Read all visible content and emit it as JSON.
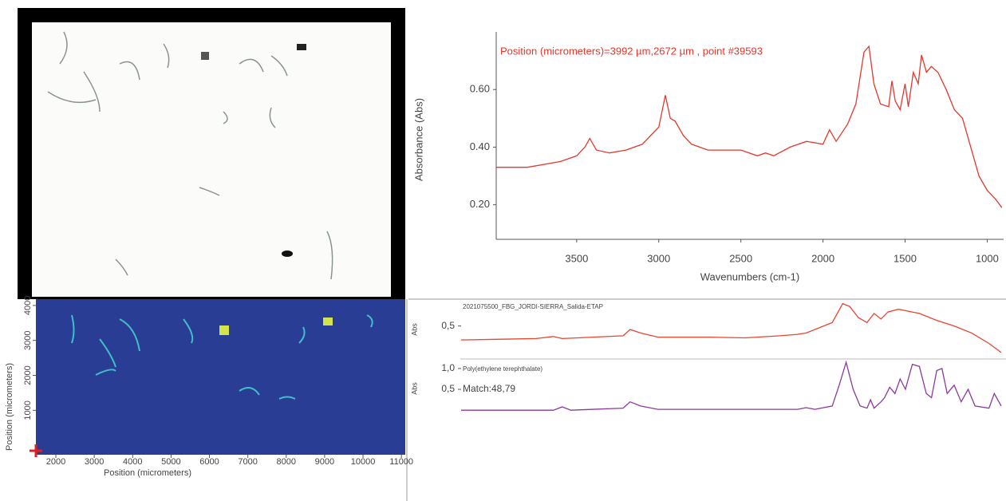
{
  "chart_data": [
    {
      "type": "image",
      "xlabel": "Position (micrometers)",
      "ylabel": "Position (micrometers)",
      "xlim": [
        1480,
        11100
      ],
      "ylim": [
        -270,
        4180
      ],
      "xticks": [
        2000,
        3000,
        4000,
        5000,
        6000,
        7000,
        8000,
        9000,
        10000,
        11000
      ],
      "yticks": [
        1000,
        2000,
        3000,
        4000
      ]
    },
    {
      "type": "line",
      "title": "Position (micrometers)=3992 µm,2672 µm , point #39593",
      "xlabel": "Wavenumbers (cm-1)",
      "ylabel": "Absorbance (Abs)",
      "xlim": [
        3990,
        900
      ],
      "ylim": [
        0.08,
        0.8
      ],
      "xticks": [
        3500,
        3000,
        2500,
        2000,
        1500,
        1000
      ],
      "yticks": [
        {
          "value": 0.6,
          "label": "0.60"
        },
        {
          "value": 0.4,
          "label": "0.40"
        },
        {
          "value": 0.2,
          "label": "0.20"
        }
      ],
      "x": [
        3990,
        3800,
        3600,
        3500,
        3450,
        3420,
        3380,
        3300,
        3200,
        3100,
        3050,
        3000,
        2960,
        2930,
        2900,
        2850,
        2800,
        2700,
        2500,
        2400,
        2350,
        2300,
        2200,
        2100,
        2000,
        1960,
        1920,
        1850,
        1800,
        1750,
        1720,
        1690,
        1650,
        1600,
        1580,
        1560,
        1530,
        1500,
        1480,
        1450,
        1420,
        1400,
        1370,
        1340,
        1300,
        1250,
        1200,
        1150,
        1100,
        1050,
        1000,
        950,
        910
      ],
      "series": [
        {
          "color": "#e0392e",
          "values": [
            0.33,
            0.33,
            0.35,
            0.37,
            0.4,
            0.43,
            0.39,
            0.38,
            0.39,
            0.41,
            0.44,
            0.47,
            0.58,
            0.5,
            0.49,
            0.44,
            0.41,
            0.39,
            0.39,
            0.37,
            0.38,
            0.37,
            0.4,
            0.42,
            0.41,
            0.46,
            0.42,
            0.48,
            0.55,
            0.73,
            0.75,
            0.62,
            0.55,
            0.54,
            0.63,
            0.56,
            0.53,
            0.62,
            0.54,
            0.66,
            0.62,
            0.72,
            0.66,
            0.68,
            0.66,
            0.6,
            0.53,
            0.5,
            0.4,
            0.3,
            0.25,
            0.22,
            0.19
          ]
        }
      ]
    },
    {
      "type": "line",
      "ylabel": "Abs",
      "xlim": [
        3930,
        830
      ],
      "ylim": [
        0.05,
        0.85
      ],
      "yticks": [
        {
          "value": 0.5,
          "label": "0,5"
        }
      ],
      "x": [
        3930,
        3500,
        3400,
        3350,
        3000,
        2960,
        2900,
        2800,
        2500,
        2300,
        2100,
        2000,
        1950,
        1800,
        1740,
        1700,
        1650,
        1600,
        1560,
        1520,
        1480,
        1420,
        1380,
        1300,
        1200,
        1100,
        1000,
        900,
        830
      ],
      "series": [
        {
          "name": "2021075500_FBG_JORDI-SIERRA_Salida-ETAP",
          "color": "#e8452f",
          "values": [
            0.3,
            0.32,
            0.35,
            0.32,
            0.36,
            0.45,
            0.4,
            0.34,
            0.34,
            0.33,
            0.36,
            0.38,
            0.4,
            0.55,
            0.82,
            0.78,
            0.62,
            0.55,
            0.68,
            0.6,
            0.7,
            0.74,
            0.72,
            0.68,
            0.58,
            0.5,
            0.4,
            0.25,
            0.12
          ]
        }
      ]
    },
    {
      "type": "line",
      "ylabel": "Abs",
      "annotation": "Match:48,79",
      "xlim": [
        3930,
        830
      ],
      "ylim": [
        -0.15,
        1.19
      ],
      "yticks": [
        {
          "value": 1.0,
          "label": "1,0"
        },
        {
          "value": 0.5,
          "label": "0,5"
        }
      ],
      "x": [
        3930,
        3400,
        3350,
        3300,
        3000,
        2960,
        2900,
        2800,
        2000,
        1950,
        1900,
        1800,
        1760,
        1720,
        1680,
        1640,
        1600,
        1580,
        1560,
        1520,
        1500,
        1470,
        1440,
        1410,
        1380,
        1340,
        1300,
        1260,
        1230,
        1200,
        1170,
        1140,
        1100,
        1060,
        1020,
        980,
        900,
        870,
        830
      ],
      "series": [
        {
          "name": "Poly(ethylene terephthalate)",
          "color": "#8b3a9b",
          "values": [
            0,
            0,
            0.08,
            0,
            0.05,
            0.2,
            0.1,
            0.02,
            0.02,
            0.06,
            0.02,
            0.1,
            0.6,
            1.15,
            0.5,
            0.1,
            0.05,
            0.25,
            0.05,
            0.2,
            0.3,
            0.55,
            0.4,
            0.75,
            0.5,
            1.1,
            1.05,
            0.4,
            0.3,
            0.95,
            1.0,
            0.4,
            0.6,
            0.2,
            0.5,
            0.1,
            0.05,
            0.4,
            0.1
          ]
        }
      ]
    }
  ]
}
